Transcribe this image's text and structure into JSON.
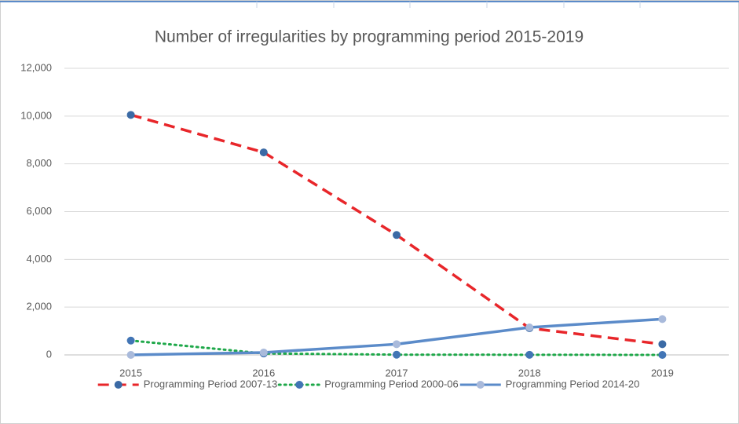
{
  "chart_data": {
    "type": "line",
    "title": "Number of irregularities by programming period 2015-2019",
    "categories": [
      "2015",
      "2016",
      "2017",
      "2018",
      "2019"
    ],
    "series": [
      {
        "name": "Programming Period 2007-13",
        "color": "#e8262a",
        "marker_color": "#3b6aa5",
        "line_style": "dashed",
        "values": [
          10050,
          8480,
          5020,
          1120,
          450
        ]
      },
      {
        "name": "Programming Period 2000-06",
        "color": "#1fa84a",
        "marker_color": "#4275b5",
        "line_style": "dotted",
        "values": [
          600,
          60,
          10,
          5,
          0
        ]
      },
      {
        "name": "Programming Period 2014-20",
        "color": "#5b8bc9",
        "marker_color": "#a9badb",
        "line_style": "solid",
        "values": [
          0,
          100,
          450,
          1150,
          1500
        ]
      }
    ],
    "ylim": [
      0,
      12000
    ],
    "yticks": [
      0,
      {
        "value": 2000,
        "label": "2,000"
      },
      {
        "value": 4000,
        "label": "4,000"
      },
      {
        "value": 6000,
        "label": "6,000"
      },
      {
        "value": 8000,
        "label": "8,000"
      },
      {
        "value": 10000,
        "label": "10,000"
      },
      {
        "value": 12000,
        "label": "12,000"
      }
    ],
    "grid": true,
    "legend": "bottom"
  }
}
